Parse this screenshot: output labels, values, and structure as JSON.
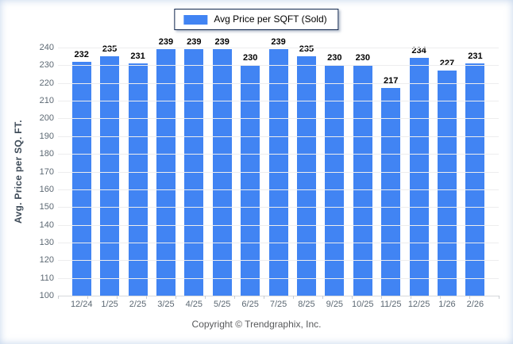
{
  "legend": {
    "label": "Avg Price per SQFT (Sold)"
  },
  "footer": {
    "text": "Copyright © Trendgraphix, Inc."
  },
  "colors": {
    "bar": "#4184F3",
    "gridline": "#EDEDEE",
    "axis_line": "#D6D9DC",
    "tick_label": "#5C6873",
    "axis_title": "#3F4C59",
    "value_label": "#000000",
    "footer_text": "#58595B",
    "legend_border": "#10264D"
  },
  "chart_data": {
    "type": "bar",
    "title": "",
    "legend": "Avg Price per SQFT (Sold)",
    "legend_position": "top-center",
    "xlabel": "",
    "ylabel": "Avg. Price per SQ. FT.",
    "ylim": [
      100,
      240
    ],
    "ytick_step": 10,
    "grid": true,
    "bar_color": "#4184F3",
    "categories": [
      "12/24",
      "1/25",
      "2/25",
      "3/25",
      "4/25",
      "5/25",
      "6/25",
      "7/25",
      "8/25",
      "9/25",
      "10/25",
      "11/25",
      "12/25",
      "1/26",
      "2/26"
    ],
    "values": [
      232,
      235,
      231,
      239,
      239,
      239,
      230,
      239,
      235,
      230,
      230,
      217,
      234,
      227,
      231
    ]
  }
}
